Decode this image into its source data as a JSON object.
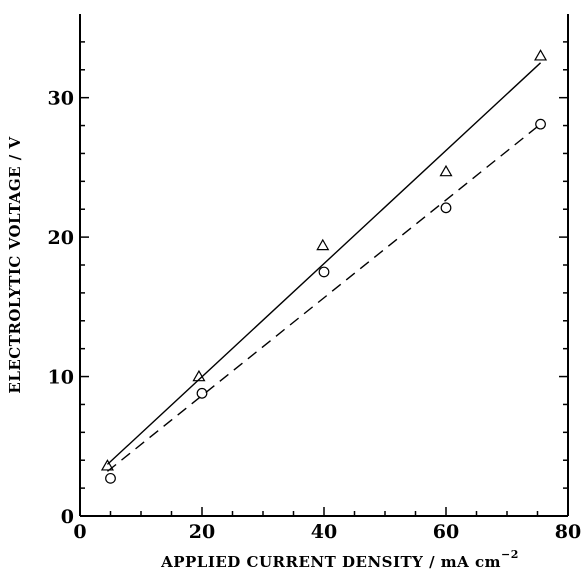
{
  "chart_data": {
    "type": "scatter",
    "xlabel_main": "APPLIED CURRENT DENSITY / mA cm",
    "xlabel_sup": "−2",
    "ylabel": "ELECTROLYTIC VOLTAGE / V",
    "xlim": [
      0,
      80
    ],
    "ylim": [
      0,
      36
    ],
    "x_ticks": [
      0,
      20,
      40,
      60,
      80
    ],
    "y_ticks": [
      0,
      10,
      20,
      30
    ],
    "grid": false,
    "series": [
      {
        "marker": "triangle",
        "line_style": "solid",
        "x": [
          4.5,
          19.5,
          39.8,
          60,
          75.5
        ],
        "y": [
          3.6,
          10.0,
          19.4,
          24.7,
          33.0
        ],
        "fit": {
          "x": [
            4.5,
            75.5
          ],
          "y": [
            3.7,
            32.5
          ]
        }
      },
      {
        "marker": "circle",
        "line_style": "dashed",
        "x": [
          5.0,
          20.0,
          40.0,
          60.0,
          75.5
        ],
        "y": [
          2.7,
          8.8,
          17.5,
          22.1,
          28.1
        ],
        "fit": {
          "x": [
            4.5,
            75.5
          ],
          "y": [
            3.2,
            28.1
          ]
        }
      }
    ]
  }
}
